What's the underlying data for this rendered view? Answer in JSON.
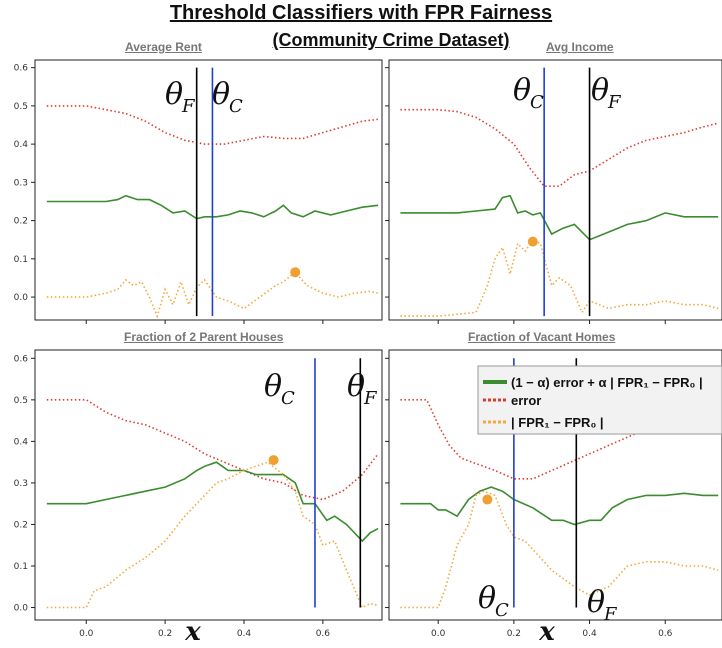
{
  "figure": {
    "title_line1": "Threshold Classifiers with FPR Fairness",
    "title_line2": "(Community Crime Dataset)",
    "x_symbol": "x",
    "legend": {
      "combined": "(1 − α) error + α | FPR₁ − FPR₀ |",
      "error": "error",
      "fpr_gap": "| FPR₁ − FPR₀ |"
    },
    "colors": {
      "combined": "#3b8b2f",
      "error": "#e03b2e",
      "fpr_gap": "#f4a93a",
      "theta_c_line": "#1f3fd6",
      "theta_f_line": "#000000",
      "marker": "#f0a030"
    }
  },
  "chart_data": [
    {
      "type": "line",
      "title": "Average Rent",
      "ylim": [
        -0.06,
        0.62
      ],
      "xlim": [
        -0.13,
        0.75
      ],
      "show_x_ticks": false,
      "yticks": [
        "0.0",
        "0.1",
        "0.2",
        "0.3",
        "0.4",
        "0.5",
        "0.6"
      ],
      "theta_f": {
        "label": "θ",
        "sub": "F",
        "x": 0.28
      },
      "theta_c": {
        "label": "θ",
        "sub": "C",
        "x": 0.32
      },
      "marker": {
        "x": 0.53,
        "y": 0.065
      },
      "series": [
        {
          "name": "error",
          "x": [
            -0.1,
            0.0,
            0.1,
            0.15,
            0.2,
            0.25,
            0.3,
            0.35,
            0.4,
            0.45,
            0.5,
            0.55,
            0.6,
            0.65,
            0.7,
            0.74
          ],
          "y": [
            0.5,
            0.5,
            0.48,
            0.46,
            0.43,
            0.41,
            0.4,
            0.4,
            0.41,
            0.42,
            0.415,
            0.415,
            0.43,
            0.445,
            0.46,
            0.465
          ]
        },
        {
          "name": "combined",
          "x": [
            -0.1,
            0.0,
            0.05,
            0.08,
            0.1,
            0.13,
            0.16,
            0.19,
            0.22,
            0.25,
            0.28,
            0.3,
            0.33,
            0.36,
            0.39,
            0.42,
            0.45,
            0.48,
            0.5,
            0.52,
            0.55,
            0.58,
            0.62,
            0.66,
            0.7,
            0.74
          ],
          "y": [
            0.25,
            0.25,
            0.25,
            0.255,
            0.265,
            0.255,
            0.255,
            0.24,
            0.22,
            0.225,
            0.205,
            0.21,
            0.21,
            0.215,
            0.225,
            0.22,
            0.21,
            0.225,
            0.24,
            0.22,
            0.21,
            0.225,
            0.215,
            0.225,
            0.235,
            0.24
          ]
        },
        {
          "name": "fpr_gap",
          "x": [
            -0.1,
            0.0,
            0.05,
            0.08,
            0.1,
            0.12,
            0.14,
            0.16,
            0.18,
            0.2,
            0.22,
            0.24,
            0.26,
            0.28,
            0.3,
            0.33,
            0.36,
            0.4,
            0.44,
            0.48,
            0.5,
            0.53,
            0.56,
            0.6,
            0.64,
            0.68,
            0.72,
            0.74
          ],
          "y": [
            0.0,
            0.0,
            0.01,
            0.02,
            0.045,
            0.03,
            0.04,
            0.0,
            -0.05,
            0.02,
            -0.02,
            0.04,
            -0.02,
            0.025,
            0.045,
            0.0,
            -0.01,
            -0.03,
            0.0,
            0.03,
            0.04,
            0.065,
            0.03,
            0.01,
            0.0,
            0.01,
            0.015,
            0.01
          ]
        }
      ]
    },
    {
      "type": "line",
      "title": "Avg Income",
      "ylim": [
        -0.06,
        0.62
      ],
      "xlim": [
        -0.13,
        0.75
      ],
      "show_x_ticks": false,
      "yticks": [],
      "theta_c": {
        "label": "θ",
        "sub": "C",
        "x": 0.28
      },
      "theta_f": {
        "label": "θ",
        "sub": "F",
        "x": 0.4
      },
      "marker": {
        "x": 0.25,
        "y": 0.145
      },
      "series": [
        {
          "name": "error",
          "x": [
            -0.1,
            0.0,
            0.05,
            0.1,
            0.15,
            0.2,
            0.24,
            0.28,
            0.32,
            0.36,
            0.4,
            0.45,
            0.5,
            0.55,
            0.6,
            0.65,
            0.7,
            0.74
          ],
          "y": [
            0.49,
            0.49,
            0.485,
            0.47,
            0.44,
            0.4,
            0.34,
            0.29,
            0.29,
            0.32,
            0.33,
            0.36,
            0.39,
            0.41,
            0.42,
            0.43,
            0.445,
            0.455
          ]
        },
        {
          "name": "combined",
          "x": [
            -0.1,
            0.0,
            0.05,
            0.1,
            0.15,
            0.17,
            0.19,
            0.21,
            0.23,
            0.25,
            0.27,
            0.3,
            0.33,
            0.36,
            0.4,
            0.45,
            0.5,
            0.55,
            0.6,
            0.65,
            0.7,
            0.74
          ],
          "y": [
            0.22,
            0.22,
            0.22,
            0.225,
            0.23,
            0.26,
            0.265,
            0.22,
            0.225,
            0.215,
            0.22,
            0.165,
            0.18,
            0.19,
            0.15,
            0.17,
            0.19,
            0.2,
            0.22,
            0.21,
            0.21,
            0.21
          ]
        },
        {
          "name": "fpr_gap",
          "x": [
            -0.1,
            0.0,
            0.05,
            0.1,
            0.13,
            0.15,
            0.17,
            0.19,
            0.21,
            0.23,
            0.25,
            0.27,
            0.3,
            0.32,
            0.35,
            0.38,
            0.4,
            0.45,
            0.5,
            0.55,
            0.6,
            0.65,
            0.7,
            0.74
          ],
          "y": [
            -0.05,
            -0.05,
            -0.045,
            -0.04,
            0.03,
            0.1,
            0.13,
            0.06,
            0.14,
            0.12,
            0.15,
            0.14,
            0.03,
            0.05,
            0.03,
            -0.04,
            -0.01,
            -0.03,
            -0.02,
            -0.02,
            -0.01,
            -0.02,
            -0.02,
            -0.03
          ]
        }
      ]
    },
    {
      "type": "line",
      "title": "Fraction of 2 Parent Houses",
      "ylim": [
        -0.03,
        0.62
      ],
      "xlim": [
        -0.13,
        0.75
      ],
      "show_x_ticks": true,
      "yticks": [
        "0.0",
        "0.1",
        "0.2",
        "0.3",
        "0.4",
        "0.5",
        "0.6"
      ],
      "xticks": [
        "0.0",
        "0.2",
        "0.4",
        "0.6"
      ],
      "theta_c": {
        "label": "θ",
        "sub": "C",
        "x": 0.58
      },
      "theta_f": {
        "label": "θ",
        "sub": "F",
        "x": 0.695
      },
      "marker": {
        "x": 0.475,
        "y": 0.355
      },
      "series": [
        {
          "name": "error",
          "x": [
            -0.1,
            0.0,
            0.05,
            0.1,
            0.15,
            0.2,
            0.25,
            0.3,
            0.35,
            0.4,
            0.45,
            0.5,
            0.55,
            0.6,
            0.65,
            0.7,
            0.74
          ],
          "y": [
            0.5,
            0.5,
            0.47,
            0.45,
            0.44,
            0.42,
            0.4,
            0.37,
            0.35,
            0.33,
            0.31,
            0.3,
            0.27,
            0.26,
            0.28,
            0.32,
            0.37
          ]
        },
        {
          "name": "combined",
          "x": [
            -0.1,
            0.0,
            0.05,
            0.1,
            0.15,
            0.2,
            0.25,
            0.28,
            0.3,
            0.33,
            0.36,
            0.4,
            0.43,
            0.46,
            0.5,
            0.53,
            0.55,
            0.58,
            0.61,
            0.63,
            0.66,
            0.7,
            0.72,
            0.74
          ],
          "y": [
            0.25,
            0.25,
            0.26,
            0.27,
            0.28,
            0.29,
            0.31,
            0.33,
            0.34,
            0.35,
            0.33,
            0.33,
            0.32,
            0.32,
            0.32,
            0.3,
            0.25,
            0.25,
            0.21,
            0.22,
            0.2,
            0.16,
            0.18,
            0.19
          ]
        },
        {
          "name": "fpr_gap",
          "x": [
            -0.1,
            0.0,
            0.02,
            0.05,
            0.1,
            0.15,
            0.2,
            0.25,
            0.3,
            0.33,
            0.36,
            0.4,
            0.43,
            0.46,
            0.5,
            0.53,
            0.55,
            0.58,
            0.6,
            0.63,
            0.66,
            0.7,
            0.72,
            0.74
          ],
          "y": [
            0.0,
            0.0,
            0.04,
            0.05,
            0.09,
            0.12,
            0.16,
            0.22,
            0.27,
            0.3,
            0.31,
            0.33,
            0.34,
            0.35,
            0.32,
            0.28,
            0.22,
            0.2,
            0.15,
            0.16,
            0.09,
            0.0,
            0.01,
            0.005
          ]
        }
      ]
    },
    {
      "type": "line",
      "title": "Fraction of Vacant Homes",
      "ylim": [
        -0.03,
        0.62
      ],
      "xlim": [
        -0.13,
        0.75
      ],
      "show_x_ticks": true,
      "yticks": [],
      "xticks": [
        "0.0",
        "0.2",
        "0.4",
        "0.6"
      ],
      "theta_c": {
        "label": "θ",
        "sub": "C",
        "x": 0.2
      },
      "theta_f": {
        "label": "θ",
        "sub": "F",
        "x": 0.365
      },
      "marker": {
        "x": 0.13,
        "y": 0.26
      },
      "series": [
        {
          "name": "error",
          "x": [
            -0.1,
            -0.03,
            0.0,
            0.03,
            0.06,
            0.09,
            0.12,
            0.15,
            0.2,
            0.25,
            0.3,
            0.35,
            0.4,
            0.45,
            0.5,
            0.55,
            0.6,
            0.65,
            0.7,
            0.74
          ],
          "y": [
            0.5,
            0.5,
            0.44,
            0.39,
            0.36,
            0.35,
            0.34,
            0.33,
            0.31,
            0.31,
            0.33,
            0.35,
            0.37,
            0.39,
            0.41,
            0.43,
            0.44,
            0.45,
            0.46,
            0.47
          ]
        },
        {
          "name": "combined",
          "x": [
            -0.1,
            -0.05,
            -0.02,
            0.0,
            0.02,
            0.05,
            0.08,
            0.11,
            0.14,
            0.17,
            0.2,
            0.25,
            0.3,
            0.33,
            0.36,
            0.4,
            0.43,
            0.46,
            0.5,
            0.55,
            0.6,
            0.65,
            0.7,
            0.74
          ],
          "y": [
            0.25,
            0.25,
            0.25,
            0.235,
            0.235,
            0.22,
            0.26,
            0.28,
            0.29,
            0.28,
            0.26,
            0.24,
            0.21,
            0.21,
            0.2,
            0.21,
            0.21,
            0.24,
            0.26,
            0.27,
            0.27,
            0.275,
            0.27,
            0.27
          ]
        },
        {
          "name": "fpr_gap",
          "x": [
            -0.1,
            -0.05,
            -0.02,
            0.0,
            0.02,
            0.05,
            0.08,
            0.1,
            0.12,
            0.15,
            0.18,
            0.2,
            0.23,
            0.26,
            0.3,
            0.33,
            0.36,
            0.4,
            0.45,
            0.5,
            0.55,
            0.6,
            0.65,
            0.7,
            0.74
          ],
          "y": [
            0.0,
            0.0,
            0.0,
            0.0,
            0.05,
            0.15,
            0.2,
            0.27,
            0.28,
            0.27,
            0.2,
            0.17,
            0.16,
            0.13,
            0.09,
            0.07,
            0.05,
            0.03,
            0.05,
            0.1,
            0.11,
            0.11,
            0.1,
            0.1,
            0.09
          ]
        }
      ]
    }
  ]
}
